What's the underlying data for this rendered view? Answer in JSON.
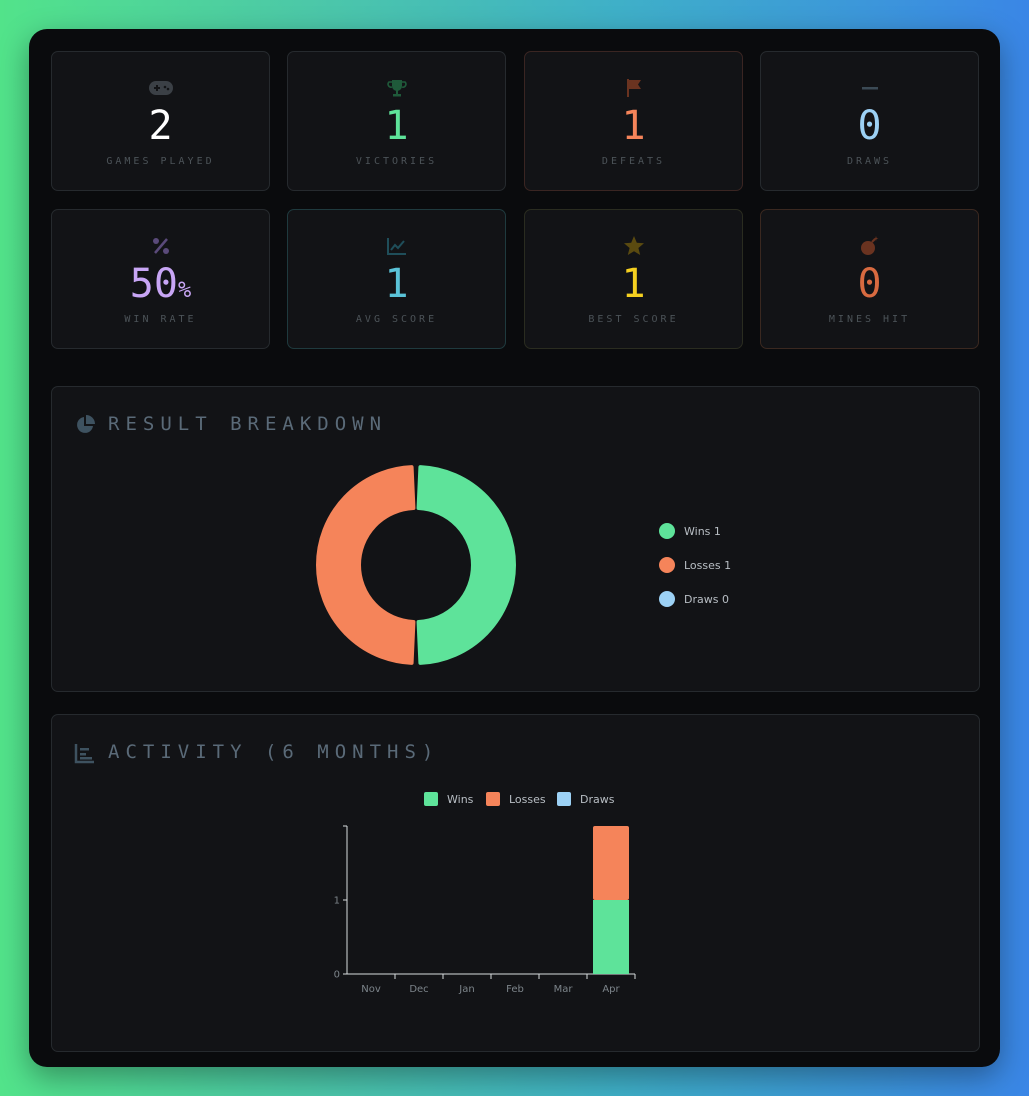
{
  "stats": [
    {
      "icon": "gamepad-icon",
      "value": "2",
      "label": "GAMES PLAYED",
      "color": "#ffffff",
      "icon_color": "#3b4046",
      "border": "#262a2e"
    },
    {
      "icon": "trophy-icon",
      "value": "1",
      "label": "VICTORIES",
      "color": "#5ee39a",
      "icon_color": "#1f5a3a",
      "border": "#262a2e"
    },
    {
      "icon": "flag-icon",
      "value": "1",
      "label": "DEFEATS",
      "color": "#f5845a",
      "icon_color": "#6a3320",
      "border": "#3a2522"
    },
    {
      "icon": "minus-icon",
      "value": "0",
      "label": "DRAWS",
      "color": "#9cd1f5",
      "icon_color": "#3b4a55",
      "border": "#262a2e"
    },
    {
      "icon": "percent-icon",
      "value": "50",
      "unit": "%",
      "label": "WIN RATE",
      "color": "#c8a6f5",
      "icon_color": "#5a4a7a",
      "border": "#262a2e"
    },
    {
      "icon": "trend-chart-icon",
      "value": "1",
      "label": "AVG SCORE",
      "color": "#5ac3d8",
      "icon_color": "#1f4e5a",
      "border": "#1f3a3e"
    },
    {
      "icon": "star-icon",
      "value": "1",
      "label": "BEST SCORE",
      "color": "#f5d020",
      "icon_color": "#5a4a10",
      "border": "#2a2c20"
    },
    {
      "icon": "bomb-icon",
      "value": "0",
      "label": "MINES HIT",
      "color": "#d86a40",
      "icon_color": "#6a3320",
      "border": "#3a2820"
    }
  ],
  "breakdown": {
    "title": "RESULT BREAKDOWN",
    "legend": [
      {
        "label": "Wins",
        "count": "1",
        "color": "#5ee39a"
      },
      {
        "label": "Losses",
        "count": "1",
        "color": "#f5845a"
      },
      {
        "label": "Draws",
        "count": "0",
        "color": "#9cd1f5"
      }
    ]
  },
  "activity": {
    "title": "ACTIVITY (6 MONTHS)",
    "legend": [
      {
        "label": "Wins",
        "color": "#5ee39a"
      },
      {
        "label": "Losses",
        "color": "#f5845a"
      },
      {
        "label": "Draws",
        "color": "#9cd1f5"
      }
    ]
  },
  "chart_data": [
    {
      "type": "pie",
      "categories": [
        "Wins",
        "Losses",
        "Draws"
      ],
      "values": [
        1,
        1,
        0
      ],
      "colors": [
        "#5ee39a",
        "#f5845a",
        "#9cd1f5"
      ]
    },
    {
      "type": "bar",
      "stacked": true,
      "categories": [
        "Nov",
        "Dec",
        "Jan",
        "Feb",
        "Mar",
        "Apr"
      ],
      "series": [
        {
          "name": "Wins",
          "values": [
            0,
            0,
            0,
            0,
            0,
            1
          ],
          "color": "#5ee39a"
        },
        {
          "name": "Losses",
          "values": [
            0,
            0,
            0,
            0,
            0,
            1
          ],
          "color": "#f5845a"
        },
        {
          "name": "Draws",
          "values": [
            0,
            0,
            0,
            0,
            0,
            0
          ],
          "color": "#9cd1f5"
        }
      ],
      "yticks": [
        "0",
        "1"
      ],
      "ylim": [
        0,
        2
      ]
    }
  ]
}
